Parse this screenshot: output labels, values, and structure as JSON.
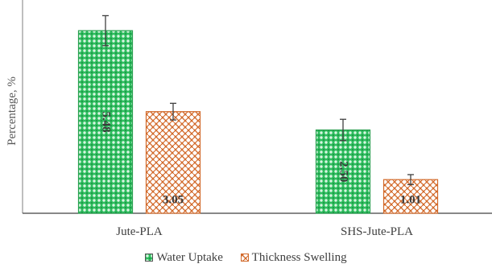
{
  "chart_data": {
    "type": "bar",
    "title": "",
    "xlabel": "",
    "ylabel": "Percentage, %",
    "categories": [
      "Jute-PLA",
      "SHS-Jute-PLA"
    ],
    "series": [
      {
        "name": "Water Uptake",
        "values": [
          5.48,
          2.5
        ],
        "labels": [
          "5.48",
          "2.50"
        ],
        "error": [
          0.45,
          0.32
        ],
        "color": "#2ebd5e",
        "pattern": "dots"
      },
      {
        "name": "Thickness Swelling",
        "values": [
          3.05,
          1.01
        ],
        "labels": [
          "3.05",
          "1.01"
        ],
        "error": [
          0.25,
          0.15
        ],
        "color": "#d2692a",
        "pattern": "weave"
      }
    ],
    "ylim": [
      0,
      6.4
    ],
    "grid": false,
    "legend": "bottom-center"
  }
}
